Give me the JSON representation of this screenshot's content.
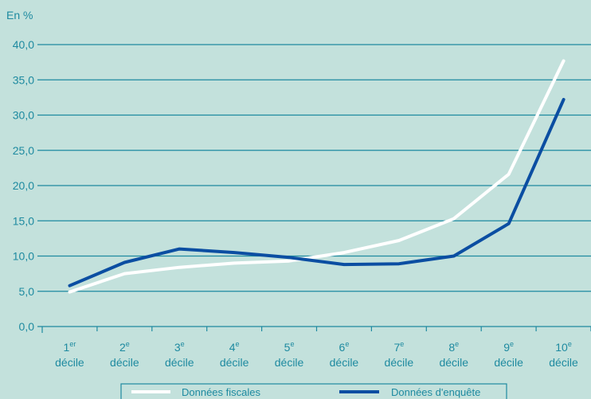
{
  "chart_data": {
    "type": "line",
    "unit_label": "En %",
    "categories": [
      {
        "main": "1",
        "sup": "er",
        "sub": "décile"
      },
      {
        "main": "2",
        "sup": "e",
        "sub": "décile"
      },
      {
        "main": "3",
        "sup": "e",
        "sub": "décile"
      },
      {
        "main": "4",
        "sup": "e",
        "sub": "décile"
      },
      {
        "main": "5",
        "sup": "e",
        "sub": "décile"
      },
      {
        "main": "6",
        "sup": "e",
        "sub": "décile"
      },
      {
        "main": "7",
        "sup": "e",
        "sub": "décile"
      },
      {
        "main": "8",
        "sup": "e",
        "sub": "décile"
      },
      {
        "main": "9",
        "sup": "e",
        "sub": "décile"
      },
      {
        "main": "10",
        "sup": "e",
        "sub": "décile"
      }
    ],
    "ylim": [
      0,
      40
    ],
    "y_ticks": [
      "0,0",
      "5,0",
      "10,0",
      "15,0",
      "20,0",
      "25,0",
      "30,0",
      "35,0",
      "40,0"
    ],
    "grid": true,
    "legend_position": "bottom",
    "series": [
      {
        "name": "Données fiscales",
        "color": "#ffffff",
        "values": [
          4.9,
          7.5,
          8.4,
          9.0,
          9.3,
          10.5,
          12.2,
          15.3,
          21.6,
          37.7
        ]
      },
      {
        "name": "Données d'enquête",
        "color": "#0b4ea2",
        "values": [
          5.8,
          9.1,
          11.0,
          10.5,
          9.8,
          8.8,
          8.9,
          10.0,
          14.6,
          32.2
        ]
      }
    ]
  }
}
